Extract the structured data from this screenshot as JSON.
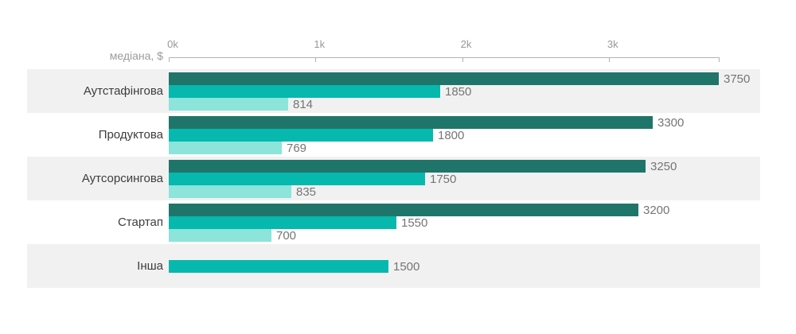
{
  "chart_data": {
    "type": "bar",
    "orientation": "horizontal",
    "title": "",
    "axis_label": "медіана, $",
    "x_ticks": [
      {
        "label": "0k",
        "value": 0
      },
      {
        "label": "1k",
        "value": 1000
      },
      {
        "label": "2k",
        "value": 2000
      },
      {
        "label": "3k",
        "value": 3000
      }
    ],
    "xlim": [
      0,
      3750
    ],
    "grid": false,
    "legend": "none",
    "series_colors": {
      "dark": "#20756a",
      "medium": "#06b8ad",
      "light": "#8ce4da"
    },
    "stripe_color": "#f1f1f1",
    "axis_color": "#b3b3b3",
    "tick_label_color": "#98999a",
    "category_label_color": "#3d3d3d",
    "value_label_color": "#757575",
    "groups": [
      {
        "label": "Аутстафінгова",
        "bars": [
          {
            "series": "dark",
            "value": 3750
          },
          {
            "series": "medium",
            "value": 1850
          },
          {
            "series": "light",
            "value": 814
          }
        ]
      },
      {
        "label": "Продуктова",
        "bars": [
          {
            "series": "dark",
            "value": 3300
          },
          {
            "series": "medium",
            "value": 1800
          },
          {
            "series": "light",
            "value": 769
          }
        ]
      },
      {
        "label": "Аутсорсингова",
        "bars": [
          {
            "series": "dark",
            "value": 3250
          },
          {
            "series": "medium",
            "value": 1750
          },
          {
            "series": "light",
            "value": 835
          }
        ]
      },
      {
        "label": "Стартап",
        "bars": [
          {
            "series": "dark",
            "value": 3200
          },
          {
            "series": "medium",
            "value": 1550
          },
          {
            "series": "light",
            "value": 700
          }
        ]
      },
      {
        "label": "Інша",
        "bars": [
          {
            "series": "medium",
            "value": 1500
          }
        ]
      }
    ]
  }
}
